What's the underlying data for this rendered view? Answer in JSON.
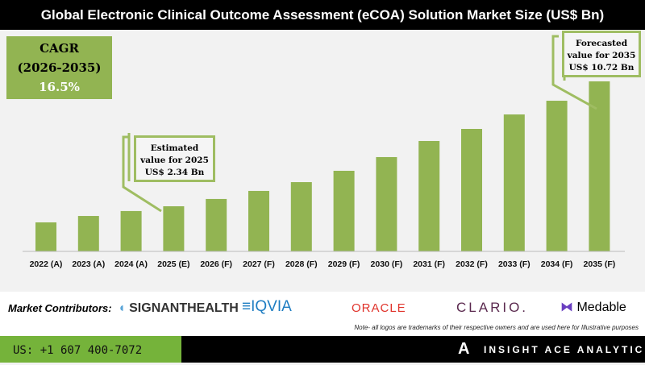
{
  "title": "Global Electronic Clinical Outcome Assessment (eCOA) Solution Market Size (US$ Bn)",
  "cagr": {
    "label": "CAGR",
    "period": "(2026-2035)",
    "value": "16.5%"
  },
  "callouts": {
    "estimated": [
      "Estimated",
      "value for 2025",
      "US$ 2.34 Bn"
    ],
    "forecasted": [
      "Forecasted",
      "value for 2035",
      "US$ 10.72 Bn"
    ]
  },
  "chart_data": {
    "type": "bar",
    "title": "Global Electronic Clinical Outcome Assessment (eCOA) Solution Market Size (US$ Bn)",
    "categories": [
      "2022 (A)",
      "2023 (A)",
      "2024 (A)",
      "2025 (E)",
      "2026 (F)",
      "2027 (F)",
      "2028 (F)",
      "2029 (F)",
      "2030 (F)",
      "2031 (F)",
      "2032 (F)",
      "2033 (F)",
      "2034 (F)",
      "2035 (F)"
    ],
    "values": [
      1.26,
      1.69,
      2.02,
      2.34,
      2.83,
      3.37,
      3.96,
      4.72,
      5.64,
      6.72,
      7.53,
      8.5,
      9.42,
      10.72
    ],
    "color": "#92b452",
    "grid": false
  },
  "contributors": {
    "label": "Market Contributors:",
    "logos": [
      "SIGNANTHEALTH",
      "IQVIA",
      "ORACLE",
      "CLARIO.",
      "Medable"
    ],
    "note": "Note- all logos are trademarks of their respective owners and are used here for Illustrative purposes"
  },
  "footer": {
    "phone": "US: +1 607 400-7072",
    "brand": "INSIGHT ACE ANALYTIC"
  }
}
